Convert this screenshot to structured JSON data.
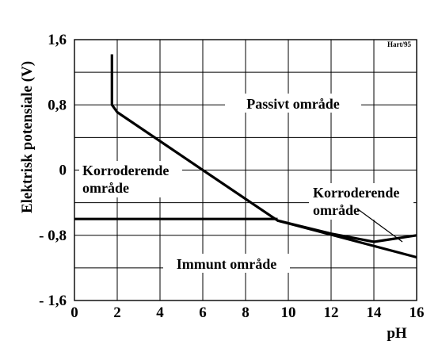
{
  "chart_data": {
    "type": "line",
    "title": "",
    "credit": "Hart/95",
    "xlabel": "pH",
    "ylabel": "Elektrisk potensiale (V)",
    "xlim": [
      0,
      16
    ],
    "ylim": [
      -1.6,
      1.6
    ],
    "x_ticks": [
      "0",
      "2",
      "4",
      "6",
      "8",
      "10",
      "12",
      "14",
      "16"
    ],
    "y_ticks": [
      "1,6",
      "0,8",
      "0",
      "- 0,8",
      "- 1,6"
    ],
    "grid": true,
    "regions": {
      "passive": "Passivt område",
      "corroding_left": [
        "Korroderende",
        "område"
      ],
      "corroding_right": [
        "Korroderende",
        "område"
      ],
      "immune": "Immunt område"
    },
    "series": [
      {
        "values": [
          [
            1.75,
            1.42
          ],
          [
            1.75,
            0.8
          ],
          [
            2.0,
            0.71
          ],
          [
            6.0,
            0.0
          ],
          [
            9.5,
            -0.62
          ],
          [
            16.0,
            -1.07
          ]
        ]
      },
      {
        "values": [
          [
            0.0,
            -0.6
          ],
          [
            9.5,
            -0.6
          ]
        ]
      },
      {
        "values": [
          [
            9.5,
            -0.62
          ],
          [
            12.0,
            -0.78
          ],
          [
            14.0,
            -0.88
          ],
          [
            16.0,
            -0.8
          ]
        ]
      }
    ]
  }
}
